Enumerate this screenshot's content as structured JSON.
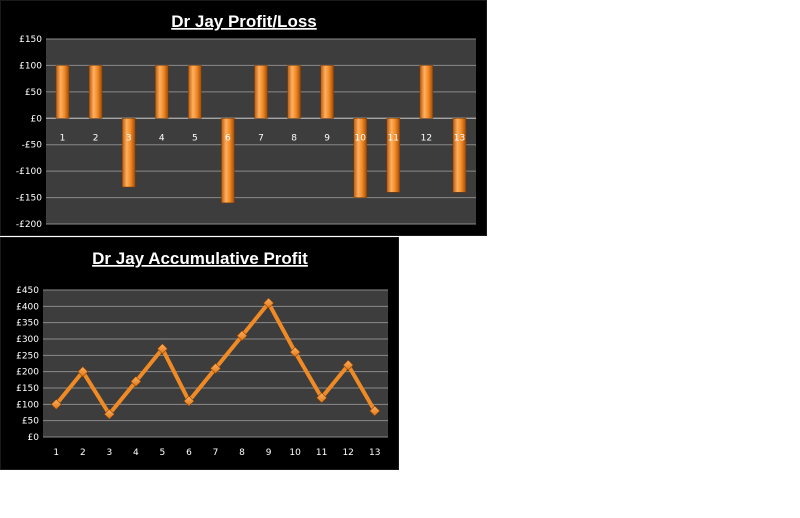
{
  "chart_data": [
    {
      "type": "bar",
      "title": "Dr Jay Profit/Loss",
      "categories": [
        "1",
        "2",
        "3",
        "4",
        "5",
        "6",
        "7",
        "8",
        "9",
        "10",
        "11",
        "12",
        "13"
      ],
      "values": [
        100,
        100,
        -130,
        100,
        100,
        -160,
        100,
        100,
        100,
        -150,
        -140,
        100,
        -140
      ],
      "ylim": [
        -200,
        150
      ],
      "yticks": [
        150,
        100,
        50,
        0,
        -50,
        -100,
        -150,
        -200
      ],
      "ytick_labels": [
        "£150",
        "£100",
        "£50",
        "£0",
        "-£50",
        "-£100",
        "-£150",
        "-£200"
      ],
      "grid": true,
      "colors": {
        "background": "#000000",
        "plot_area": "#3d3d3d",
        "bar": "#f08a24",
        "gridline": "#8a8a8a"
      }
    },
    {
      "type": "line",
      "title": "Dr Jay Accumulative Profit",
      "categories": [
        "1",
        "2",
        "3",
        "4",
        "5",
        "6",
        "7",
        "8",
        "9",
        "10",
        "11",
        "12",
        "13"
      ],
      "values": [
        100,
        200,
        70,
        170,
        270,
        110,
        210,
        310,
        410,
        260,
        120,
        220,
        80
      ],
      "ylim": [
        0,
        450
      ],
      "yticks": [
        450,
        400,
        350,
        300,
        250,
        200,
        150,
        100,
        50,
        0
      ],
      "ytick_labels": [
        "£450",
        "£400",
        "£350",
        "£300",
        "£250",
        "£200",
        "£150",
        "£100",
        "£50",
        "£0"
      ],
      "grid": true,
      "colors": {
        "background": "#000000",
        "plot_area": "#3d3d3d",
        "line": "#f08a24",
        "marker": "#f5a040",
        "gridline": "#8a8a8a"
      }
    }
  ]
}
